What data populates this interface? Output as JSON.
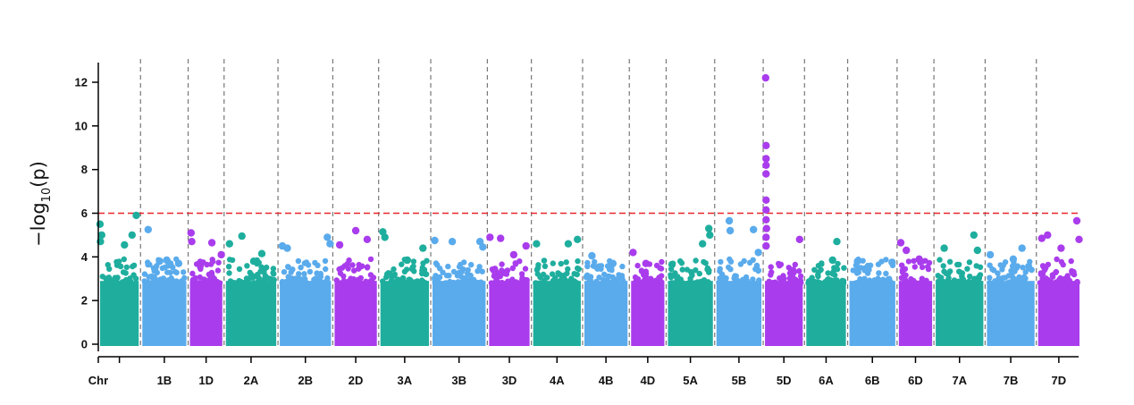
{
  "chart_data": {
    "type": "scatter",
    "subtype": "manhattan",
    "title": "",
    "xlabel": "Chr",
    "ylabel": {
      "base": "−log",
      "sub": "10",
      "arg": "(p)"
    },
    "ylim": [
      0,
      13
    ],
    "yticks": [
      0,
      2,
      4,
      6,
      8,
      10,
      12
    ],
    "threshold": 6,
    "threshold_color": "#e8262b",
    "grid": false,
    "legend": "none",
    "colors": [
      "#1fae9e",
      "#5aabec",
      "#a93cec"
    ],
    "chromosomes": [
      {
        "name": "",
        "label": "",
        "color": 0,
        "mid_printed": false
      },
      {
        "name": "1B",
        "label": "1B",
        "color": 1
      },
      {
        "name": "1D",
        "label": "1D",
        "color": 2
      },
      {
        "name": "2A",
        "label": "2A",
        "color": 0
      },
      {
        "name": "2B",
        "label": "2B",
        "color": 1
      },
      {
        "name": "2D",
        "label": "2D",
        "color": 2
      },
      {
        "name": "3A",
        "label": "3A",
        "color": 0
      },
      {
        "name": "3B",
        "label": "3B",
        "color": 1
      },
      {
        "name": "3D",
        "label": "3D",
        "color": 2
      },
      {
        "name": "4A",
        "label": "4A",
        "color": 0
      },
      {
        "name": "4B",
        "label": "4B",
        "color": 1
      },
      {
        "name": "4D",
        "label": "4D",
        "color": 2
      },
      {
        "name": "5A",
        "label": "5A",
        "color": 0
      },
      {
        "name": "5B",
        "label": "5B",
        "color": 1
      },
      {
        "name": "5D",
        "label": "5D",
        "color": 2
      },
      {
        "name": "6A",
        "label": "6A",
        "color": 0
      },
      {
        "name": "6B",
        "label": "6B",
        "color": 1
      },
      {
        "name": "6D",
        "label": "6D",
        "color": 2
      },
      {
        "name": "7A",
        "label": "7A",
        "color": 0
      },
      {
        "name": "7B",
        "label": "7B",
        "color": 1
      },
      {
        "name": "7D",
        "label": "7D",
        "color": 2
      }
    ],
    "chromosome_relative_lengths": [
      47,
      53,
      40,
      60,
      61,
      51,
      58,
      63,
      49,
      57,
      52,
      41,
      54,
      54,
      46,
      48,
      55,
      41,
      57,
      57,
      50
    ],
    "top_points": [
      {
        "chr": "",
        "pos": 0.04,
        "y": 5.5
      },
      {
        "chr": "",
        "pos": 0.08,
        "y": 5.0
      },
      {
        "chr": "",
        "pos": 0.05,
        "y": 4.7
      },
      {
        "chr": "",
        "pos": 0.62,
        "y": 4.55
      },
      {
        "chr": "",
        "pos": 0.8,
        "y": 5.0
      },
      {
        "chr": "",
        "pos": 0.9,
        "y": 5.9
      },
      {
        "chr": "1B",
        "pos": 0.16,
        "y": 5.25
      },
      {
        "chr": "1B",
        "pos": 0.4,
        "y": 3.8
      },
      {
        "chr": "1B",
        "pos": 0.55,
        "y": 3.85
      },
      {
        "chr": "1B",
        "pos": 0.8,
        "y": 3.7
      },
      {
        "chr": "1D",
        "pos": 0.08,
        "y": 5.1
      },
      {
        "chr": "1D",
        "pos": 0.1,
        "y": 4.7
      },
      {
        "chr": "1D",
        "pos": 0.66,
        "y": 4.65
      },
      {
        "chr": "1D",
        "pos": 0.92,
        "y": 4.1
      },
      {
        "chr": "2A",
        "pos": 0.1,
        "y": 4.6
      },
      {
        "chr": "2A",
        "pos": 0.33,
        "y": 4.95
      },
      {
        "chr": "2A",
        "pos": 0.7,
        "y": 4.15
      },
      {
        "chr": "2A",
        "pos": 0.55,
        "y": 3.8
      },
      {
        "chr": "2B",
        "pos": 0.08,
        "y": 4.5
      },
      {
        "chr": "2B",
        "pos": 0.17,
        "y": 4.4
      },
      {
        "chr": "2B",
        "pos": 0.9,
        "y": 4.9
      },
      {
        "chr": "2B",
        "pos": 0.95,
        "y": 4.6
      },
      {
        "chr": "2D",
        "pos": 0.5,
        "y": 5.2
      },
      {
        "chr": "2D",
        "pos": 0.15,
        "y": 4.55
      },
      {
        "chr": "2D",
        "pos": 0.75,
        "y": 4.8
      },
      {
        "chr": "3A",
        "pos": 0.08,
        "y": 5.15
      },
      {
        "chr": "3A",
        "pos": 0.12,
        "y": 4.9
      },
      {
        "chr": "3A",
        "pos": 0.55,
        "y": 3.85
      },
      {
        "chr": "3A",
        "pos": 0.85,
        "y": 4.4
      },
      {
        "chr": "3B",
        "pos": 0.07,
        "y": 4.75
      },
      {
        "chr": "3B",
        "pos": 0.38,
        "y": 4.7
      },
      {
        "chr": "3B",
        "pos": 0.87,
        "y": 4.7
      },
      {
        "chr": "3B",
        "pos": 0.92,
        "y": 4.45
      },
      {
        "chr": "3D",
        "pos": 0.06,
        "y": 4.9
      },
      {
        "chr": "3D",
        "pos": 0.3,
        "y": 4.85
      },
      {
        "chr": "3D",
        "pos": 0.6,
        "y": 4.1
      },
      {
        "chr": "3D",
        "pos": 0.88,
        "y": 4.5
      },
      {
        "chr": "4A",
        "pos": 0.1,
        "y": 4.6
      },
      {
        "chr": "4A",
        "pos": 0.72,
        "y": 4.6
      },
      {
        "chr": "4A",
        "pos": 0.9,
        "y": 4.8
      },
      {
        "chr": "4B",
        "pos": 0.2,
        "y": 4.05
      },
      {
        "chr": "4B",
        "pos": 0.65,
        "y": 3.7
      },
      {
        "chr": "4D",
        "pos": 0.1,
        "y": 4.2
      },
      {
        "chr": "4D",
        "pos": 0.45,
        "y": 3.7
      },
      {
        "chr": "5A",
        "pos": 0.12,
        "y": 3.65
      },
      {
        "chr": "5A",
        "pos": 0.75,
        "y": 4.6
      },
      {
        "chr": "5A",
        "pos": 0.88,
        "y": 5.3
      },
      {
        "chr": "5A",
        "pos": 0.9,
        "y": 5.0
      },
      {
        "chr": "5B",
        "pos": 0.3,
        "y": 5.65
      },
      {
        "chr": "5B",
        "pos": 0.32,
        "y": 5.2
      },
      {
        "chr": "5B",
        "pos": 0.8,
        "y": 5.25
      },
      {
        "chr": "5B",
        "pos": 0.9,
        "y": 4.2
      },
      {
        "chr": "5D",
        "pos": 0.06,
        "y": 12.2
      },
      {
        "chr": "5D",
        "pos": 0.07,
        "y": 9.1
      },
      {
        "chr": "5D",
        "pos": 0.07,
        "y": 8.5
      },
      {
        "chr": "5D",
        "pos": 0.07,
        "y": 8.2
      },
      {
        "chr": "5D",
        "pos": 0.07,
        "y": 7.8
      },
      {
        "chr": "5D",
        "pos": 0.07,
        "y": 6.6
      },
      {
        "chr": "5D",
        "pos": 0.07,
        "y": 6.15
      },
      {
        "chr": "5D",
        "pos": 0.07,
        "y": 5.7
      },
      {
        "chr": "5D",
        "pos": 0.08,
        "y": 5.3
      },
      {
        "chr": "5D",
        "pos": 0.07,
        "y": 4.9
      },
      {
        "chr": "5D",
        "pos": 0.07,
        "y": 4.5
      },
      {
        "chr": "5D",
        "pos": 0.88,
        "y": 4.8
      },
      {
        "chr": "6A",
        "pos": 0.75,
        "y": 4.7
      },
      {
        "chr": "6A",
        "pos": 0.65,
        "y": 3.85
      },
      {
        "chr": "6B",
        "pos": 0.2,
        "y": 3.8
      },
      {
        "chr": "6B",
        "pos": 0.9,
        "y": 3.75
      },
      {
        "chr": "6D",
        "pos": 0.1,
        "y": 4.65
      },
      {
        "chr": "6D",
        "pos": 0.25,
        "y": 4.3
      },
      {
        "chr": "6D",
        "pos": 0.6,
        "y": 3.9
      },
      {
        "chr": "7A",
        "pos": 0.2,
        "y": 4.4
      },
      {
        "chr": "7A",
        "pos": 0.78,
        "y": 5.0
      },
      {
        "chr": "7A",
        "pos": 0.85,
        "y": 4.3
      },
      {
        "chr": "7B",
        "pos": 0.1,
        "y": 4.1
      },
      {
        "chr": "7B",
        "pos": 0.55,
        "y": 3.9
      },
      {
        "chr": "7B",
        "pos": 0.72,
        "y": 4.4
      },
      {
        "chr": "7D",
        "pos": 0.12,
        "y": 4.85
      },
      {
        "chr": "7D",
        "pos": 0.25,
        "y": 5.0
      },
      {
        "chr": "7D",
        "pos": 0.55,
        "y": 4.4
      },
      {
        "chr": "7D",
        "pos": 0.9,
        "y": 5.65
      },
      {
        "chr": "7D",
        "pos": 0.95,
        "y": 4.8
      }
    ]
  }
}
